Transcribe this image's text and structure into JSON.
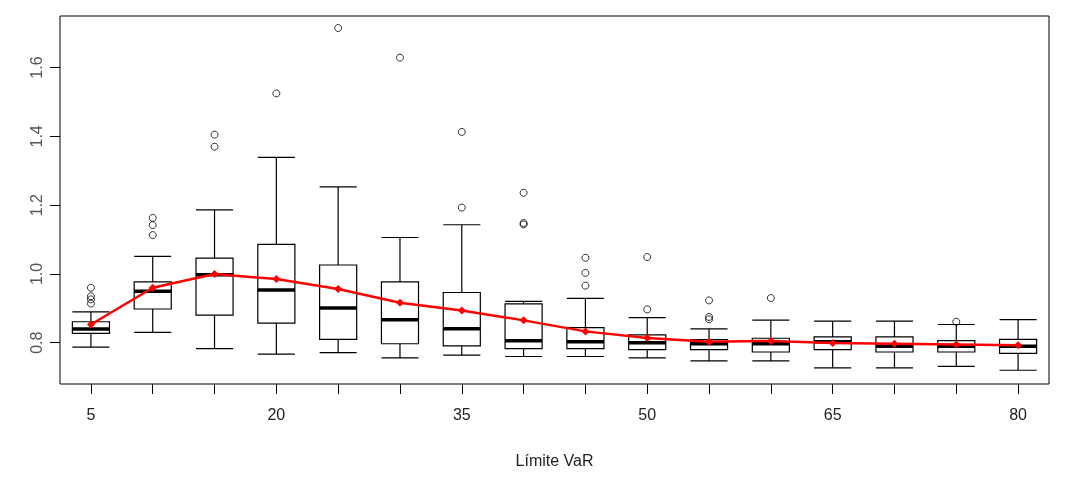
{
  "chart_data": {
    "type": "box",
    "xlabel": "Límite VaR",
    "categories": [
      "5",
      null,
      null,
      "20",
      null,
      null,
      "35",
      null,
      null,
      "50",
      null,
      null,
      "65",
      null,
      null,
      "80"
    ],
    "ylim": [
      0.68,
      1.75
    ],
    "yticks": [
      0.8,
      {
        "value": 1.0,
        "label": "1.0"
      },
      1.2,
      1.4,
      1.6
    ],
    "grid": false,
    "series": [
      {
        "color": "#000000",
        "boxes": [
          {
            "low": 0.787,
            "q1": 0.827,
            "median": 0.84,
            "q3": 0.861,
            "high": 0.89,
            "outliers": [
              0.96,
              0.935,
              0.926,
              0.914
            ]
          },
          {
            "low": 0.83,
            "q1": 0.898,
            "median": 0.95,
            "q3": 0.977,
            "high": 1.051,
            "outliers": [
              1.163,
              1.142,
              1.113
            ]
          },
          {
            "low": 0.783,
            "q1": 0.88,
            "median": 0.998,
            "q3": 1.046,
            "high": 1.186,
            "outliers": [
              1.405,
              1.37
            ]
          },
          {
            "low": 0.767,
            "q1": 0.857,
            "median": 0.953,
            "q3": 1.086,
            "high": 1.339,
            "outliers": [
              1.525
            ]
          },
          {
            "low": 0.771,
            "q1": 0.81,
            "median": 0.901,
            "q3": 1.026,
            "high": 1.253,
            "outliers": [
              1.715
            ]
          },
          {
            "low": 0.756,
            "q1": 0.797,
            "median": 0.867,
            "q3": 0.977,
            "high": 1.106,
            "outliers": [
              1.629
            ]
          },
          {
            "low": 0.764,
            "q1": 0.791,
            "median": 0.841,
            "q3": 0.946,
            "high": 1.143,
            "outliers": [
              1.413,
              1.193
            ]
          },
          {
            "low": 0.76,
            "q1": 0.783,
            "median": 0.806,
            "q3": 0.913,
            "high": 0.92,
            "outliers": [
              1.236,
              1.148,
              1.144
            ]
          },
          {
            "low": 0.76,
            "q1": 0.783,
            "median": 0.803,
            "q3": 0.844,
            "high": 0.929,
            "outliers": [
              1.047,
              1.003,
              0.966
            ]
          },
          {
            "low": 0.756,
            "q1": 0.78,
            "median": 0.8,
            "q3": 0.823,
            "high": 0.873,
            "outliers": [
              1.049,
              0.897
            ]
          },
          {
            "low": 0.747,
            "q1": 0.78,
            "median": 0.797,
            "q3": 0.809,
            "high": 0.84,
            "outliers": [
              0.923,
              0.875,
              0.868
            ]
          },
          {
            "low": 0.747,
            "q1": 0.773,
            "median": 0.797,
            "q3": 0.813,
            "high": 0.866,
            "outliers": [
              0.93
            ]
          },
          {
            "low": 0.727,
            "q1": 0.78,
            "median": 0.803,
            "q3": 0.817,
            "high": 0.863
          },
          {
            "low": 0.727,
            "q1": 0.773,
            "median": 0.79,
            "q3": 0.817,
            "high": 0.863
          },
          {
            "low": 0.731,
            "q1": 0.773,
            "median": 0.79,
            "q3": 0.806,
            "high": 0.853,
            "outliers": [
              0.861
            ]
          },
          {
            "low": 0.72,
            "q1": 0.769,
            "median": 0.79,
            "q3": 0.81,
            "high": 0.867
          }
        ]
      },
      {
        "type": "line",
        "color": "#ff0000",
        "marker": "diamond",
        "line_style": "solid",
        "values": [
          0.853,
          0.96,
          1.0,
          0.985,
          0.956,
          0.916,
          0.894,
          0.865,
          0.833,
          0.814,
          0.803,
          0.805,
          0.799,
          0.797,
          0.795,
          0.793
        ]
      }
    ]
  }
}
